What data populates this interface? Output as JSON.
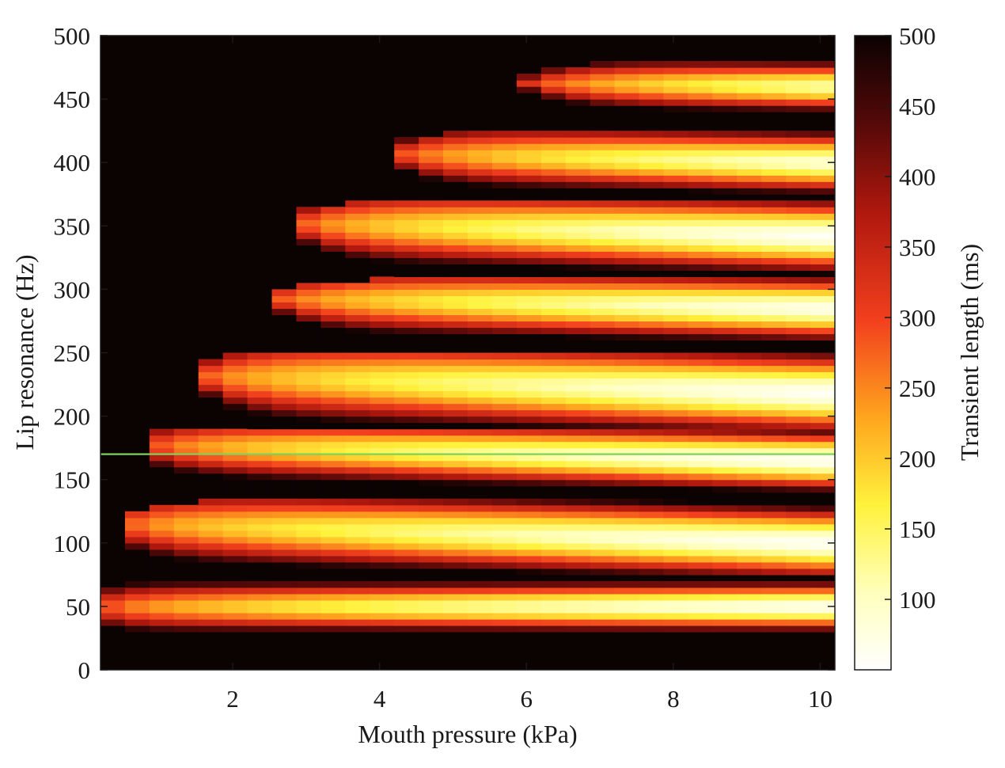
{
  "chart_data": {
    "type": "heatmap",
    "xlabel": "Mouth pressure (kPa)",
    "ylabel": "Lip resonance (Hz)",
    "colorbar_label": "Transient length (ms)",
    "xlim": [
      0.2,
      10.2
    ],
    "ylim": [
      0,
      500
    ],
    "xticks": [
      "2",
      "4",
      "6",
      "8",
      "10"
    ],
    "yticks": [
      "0",
      "50",
      "100",
      "150",
      "200",
      "250",
      "300",
      "350",
      "400",
      "450",
      "500"
    ],
    "colorbar_range": [
      50,
      500
    ],
    "colorbar_ticks": [
      "100",
      "150",
      "200",
      "250",
      "300",
      "350",
      "400",
      "450",
      "500"
    ],
    "background_value": 500,
    "reference_line": {
      "y": 170,
      "color": "#7cd35b"
    },
    "bands": [
      {
        "start_x": 0.2,
        "y_start": 50,
        "y_end": 50,
        "low_upper": 64,
        "low_lower": 36,
        "high_upper": 70,
        "high_lower": 30,
        "steep": 0.3,
        "tip_value": 330,
        "end_value": 60
      },
      {
        "start_x": 0.5,
        "y_start": 115,
        "y_end": 100,
        "low_upper": 120,
        "low_lower": 88,
        "high_upper": 135,
        "high_lower": 76,
        "steep": 0.5,
        "tip_value": 320,
        "end_value": 55
      },
      {
        "start_x": 0.9,
        "y_start": 177,
        "y_end": 165,
        "low_upper": 188,
        "low_lower": 158,
        "high_upper": 190,
        "high_lower": 140,
        "steep": 0.55,
        "tip_value": 330,
        "end_value": 55
      },
      {
        "start_x": 1.5,
        "y_start": 232,
        "y_end": 218,
        "low_upper": 240,
        "low_lower": 222,
        "high_upper": 252,
        "high_lower": 185,
        "steep": 0.5,
        "tip_value": 330,
        "end_value": 55
      },
      {
        "start_x": 2.5,
        "y_start": 293,
        "y_end": 285,
        "low_upper": 298,
        "low_lower": 285,
        "high_upper": 308,
        "high_lower": 255,
        "steep": 0.5,
        "tip_value": 340,
        "end_value": 65
      },
      {
        "start_x": 2.8,
        "y_start": 352,
        "y_end": 342,
        "low_upper": 360,
        "low_lower": 342,
        "high_upper": 370,
        "high_lower": 310,
        "steep": 0.5,
        "tip_value": 340,
        "end_value": 55
      },
      {
        "start_x": 4.1,
        "y_start": 407,
        "y_end": 400,
        "low_upper": 412,
        "low_lower": 403,
        "high_upper": 425,
        "high_lower": 375,
        "steep": 0.45,
        "tip_value": 360,
        "end_value": 85
      },
      {
        "start_x": 5.9,
        "y_start": 463,
        "y_end": 460,
        "low_upper": 467,
        "low_lower": 460,
        "high_upper": 480,
        "high_lower": 440,
        "steep": 0.55,
        "tip_value": 390,
        "end_value": 110
      }
    ]
  }
}
